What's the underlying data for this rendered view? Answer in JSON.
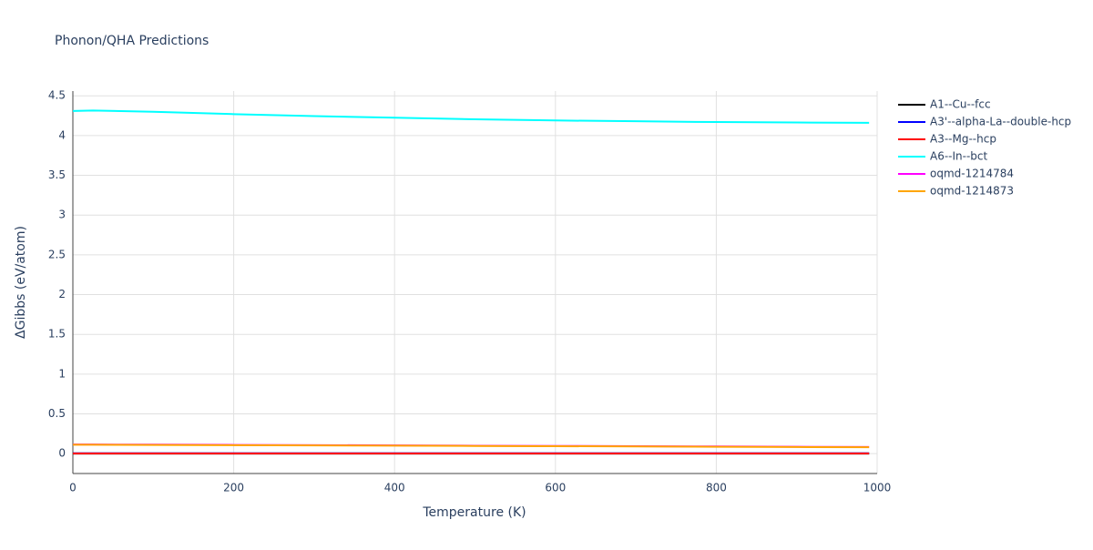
{
  "chart_data": {
    "type": "line",
    "title": "Phonon/QHA Predictions",
    "x_label": "Temperature (K)",
    "y_label": "ΔGibbs (eV/atom)",
    "x": [
      0,
      25,
      100,
      200,
      300,
      400,
      500,
      600,
      700,
      800,
      900,
      990
    ],
    "series": [
      {
        "name": "A1--Cu--fcc",
        "color": "#000000",
        "values": [
          0,
          0,
          0,
          0,
          0,
          0,
          0,
          0,
          0,
          0,
          0,
          0
        ]
      },
      {
        "name": "A3'--alpha-La--double-hcp",
        "color": "#0000ff",
        "values": [
          0.005,
          0.005,
          0.005,
          0.005,
          0.005,
          0.005,
          0.005,
          0.005,
          0.005,
          0.005,
          0.005,
          0.005
        ]
      },
      {
        "name": "A6--In--bct",
        "color": "#00ffff",
        "values": [
          4.31,
          4.315,
          4.3,
          4.27,
          4.245,
          4.225,
          4.205,
          4.19,
          4.18,
          4.17,
          4.165,
          4.16
        ]
      },
      {
        "name": "oqmd-1214784",
        "color": "#ff00ff",
        "values": [
          0.115,
          0.115,
          0.113,
          0.11,
          0.107,
          0.104,
          0.1,
          0.097,
          0.093,
          0.09,
          0.086,
          0.083
        ]
      },
      {
        "name": "oqmd-1214873",
        "color": "#ffa500",
        "values": [
          0.112,
          0.112,
          0.11,
          0.107,
          0.104,
          0.101,
          0.097,
          0.094,
          0.09,
          0.087,
          0.083,
          0.08
        ]
      },
      {
        "name": "A3--Mg--hcp",
        "color": "#ff0000",
        "values": [
          0.002,
          0.002,
          0.002,
          0.002,
          0.002,
          0.002,
          0.002,
          0.002,
          0.002,
          0.002,
          0.002,
          0.002
        ]
      }
    ],
    "legend_order": [
      0,
      1,
      5,
      2,
      3,
      4
    ],
    "xlim": [
      0,
      1000
    ],
    "xticks": [
      0,
      200,
      400,
      600,
      800,
      1000
    ],
    "ylim": [
      -0.25,
      4.56
    ],
    "yticks": [
      0,
      0.5,
      1,
      1.5,
      2,
      2.5,
      3,
      3.5,
      4,
      4.5
    ],
    "grid": true,
    "legend": "right"
  }
}
